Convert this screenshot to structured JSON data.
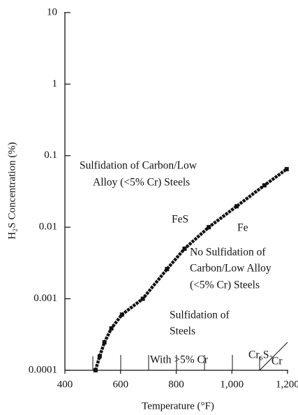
{
  "chart_data": {
    "type": "line",
    "x_label": "Temperature (°F)",
    "y_label": "H₂S Concentration (%)",
    "x": [
      510,
      525,
      542,
      567,
      605,
      680,
      767,
      830,
      917,
      1017,
      1117,
      1197
    ],
    "series": [
      {
        "color": "#111111",
        "values": [
          0.0001,
          0.000157,
          0.000246,
          0.000385,
          0.0006,
          0.001,
          0.0026,
          0.005,
          0.01,
          0.0196,
          0.0385,
          0.0648
        ]
      }
    ],
    "xlim": [
      400,
      1200
    ],
    "xticks": [
      400,
      600,
      800,
      {
        "value": 1000,
        "label": "1,000"
      },
      {
        "value": 1200,
        "label": "1,200"
      }
    ],
    "ylim": [
      0.0001,
      10
    ],
    "yticks": [
      0.0001,
      0.001,
      0.01,
      0.1,
      1,
      10
    ],
    "y_log": true,
    "annotations": [
      "Sulfidation of Carbon/Low",
      "Alloy (<5% Cr) Steels",
      "FeS",
      "Fe",
      "No Sulfidation of",
      "Carbon/Low Alloy",
      "(<5% Cr) Steels",
      "Sulfidation of",
      "Steels",
      "Cr₆S₇",
      "Cr",
      "With >5% Cr"
    ]
  }
}
